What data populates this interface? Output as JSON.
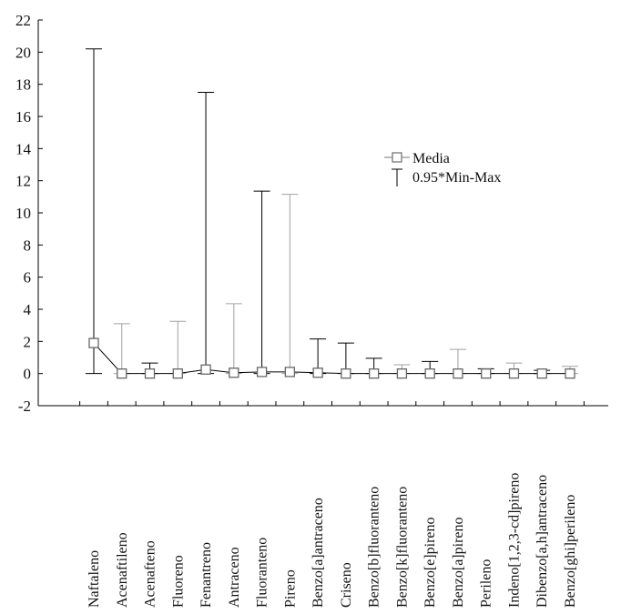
{
  "chart_data": {
    "type": "line",
    "categories": [
      "Naftaleno",
      "Acenaftileno",
      "Acenafteno",
      "Fluoreno",
      "Fenantreno",
      "Antraceno",
      "Fluoranteno",
      "Pireno",
      "Benzo[a]antraceno",
      "Criseno",
      "Benzo[b]fluoranteno",
      "Benzo[k]fluoranteno",
      "Benzo[e]pireno",
      "Benzo[a]pireno",
      "Perileno",
      "Indeno[1,2,3-cd]pireno",
      "Dibenzo[a,h]antraceno",
      "Benzo[ghi]perileno"
    ],
    "series": [
      {
        "name": "Media",
        "values": [
          1.9,
          0.0,
          0.0,
          0.0,
          0.25,
          0.05,
          0.1,
          0.1,
          0.05,
          0.0,
          0.0,
          0.0,
          0.0,
          0.0,
          0.0,
          0.0,
          0.0,
          0.0
        ]
      },
      {
        "name": "0.95*Min-Max",
        "min": [
          0,
          0,
          0,
          0,
          0,
          0,
          0,
          0,
          0,
          0,
          0,
          0,
          0,
          0,
          0,
          0,
          0,
          0
        ],
        "max": [
          20.2,
          3.1,
          0.65,
          3.25,
          17.5,
          4.35,
          11.35,
          11.15,
          2.15,
          1.9,
          0.95,
          0.55,
          0.75,
          1.5,
          0.3,
          0.65,
          0.2,
          0.45
        ]
      }
    ],
    "ylim": [
      -2,
      22
    ],
    "yticks": [
      "-2",
      "0",
      "2",
      "4",
      "6",
      "8",
      "10",
      "12",
      "14",
      "16",
      "18",
      "20",
      "22"
    ],
    "legend": {
      "position": "right",
      "entries": [
        "Media",
        "0.95*Min-Max"
      ]
    },
    "grid": false,
    "bar_colors": [
      "#000000",
      "#a0a0a0",
      "#000000",
      "#a0a0a0",
      "#000000",
      "#a0a0a0",
      "#000000",
      "#a0a0a0",
      "#000000",
      "#000000",
      "#000000",
      "#a0a0a0",
      "#000000",
      "#a0a0a0",
      "#000000",
      "#a0a0a0",
      "#000000",
      "#a0a0a0"
    ],
    "line_color": "#000000",
    "marker_color": "#666666"
  }
}
